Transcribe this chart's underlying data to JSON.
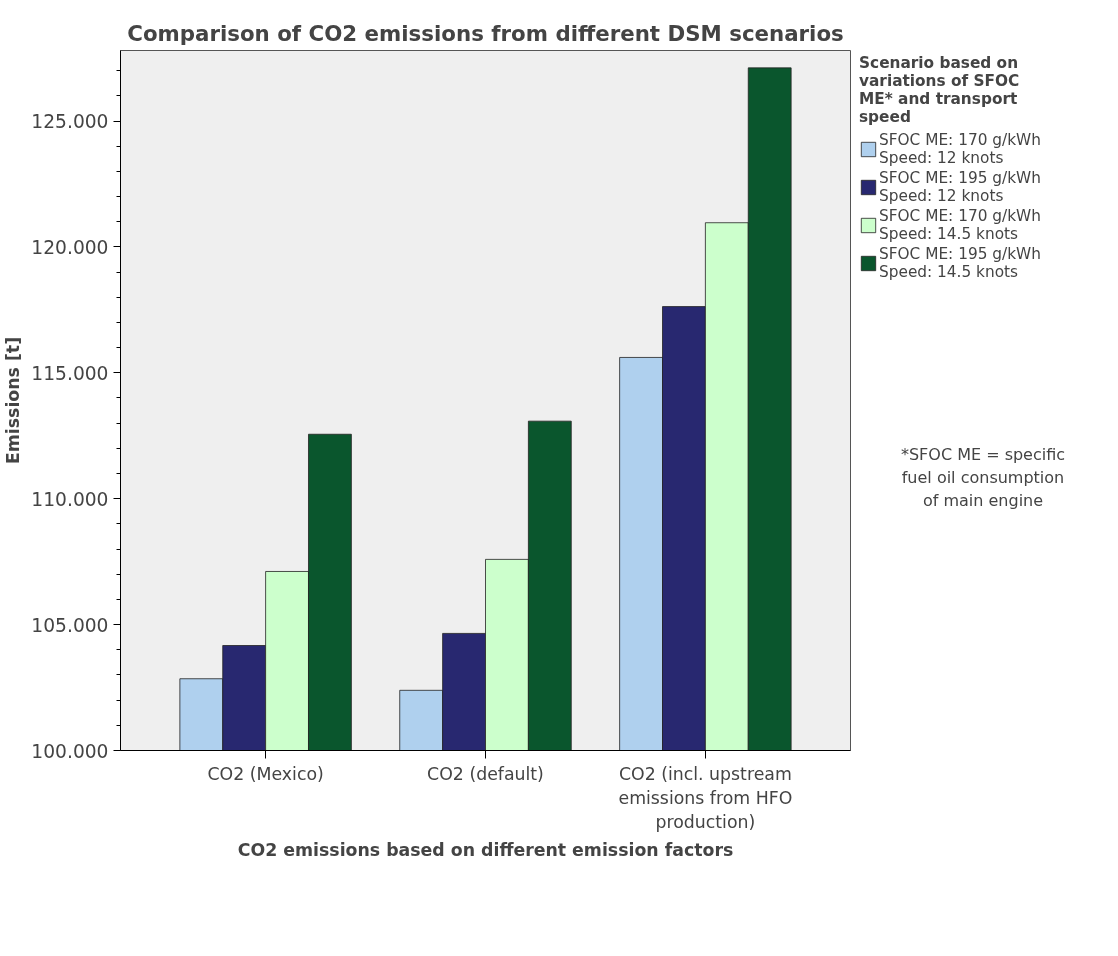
{
  "chart_data": {
    "type": "bar",
    "title": "Comparison of CO2 emissions from different DSM scenarios",
    "xlabel": "CO2 emissions based on different emission factors",
    "ylabel": "Emissions [t]",
    "legend_title": "Scenario based on variations of SFOC ME* and transport speed",
    "categories": [
      "CO2 (Mexico)",
      "CO2 (default)",
      "CO2 (incl. upstream emissions from HFO production)"
    ],
    "series": [
      {
        "name": "SFOC ME: 170 g/kWh Speed: 12 knots",
        "color": "#afd0ee",
        "values": [
          102.85,
          102.39,
          115.61
        ]
      },
      {
        "name": "SFOC ME: 195 g/kWh Speed: 12 knots",
        "color": "#282870",
        "values": [
          104.17,
          104.65,
          117.63
        ]
      },
      {
        "name": "SFOC ME: 170 g/kWh Speed: 14.5 knots",
        "color": "#ccffcc",
        "values": [
          107.11,
          107.59,
          120.96
        ]
      },
      {
        "name": "SFOC ME: 195 g/kWh Speed: 14.5 knots",
        "color": "#0a562d",
        "values": [
          112.56,
          113.08,
          127.11
        ]
      }
    ],
    "ylim": [
      100,
      127.8
    ],
    "yticks": [
      {
        "value": 100,
        "label": "100.000"
      },
      {
        "value": 101,
        "label": null
      },
      {
        "value": 102,
        "label": null
      },
      {
        "value": 103,
        "label": null
      },
      {
        "value": 104,
        "label": null
      },
      {
        "value": 105,
        "label": "105.000"
      },
      {
        "value": 106,
        "label": null
      },
      {
        "value": 107,
        "label": null
      },
      {
        "value": 108,
        "label": null
      },
      {
        "value": 109,
        "label": null
      },
      {
        "value": 110,
        "label": "110.000"
      },
      {
        "value": 111,
        "label": null
      },
      {
        "value": 112,
        "label": null
      },
      {
        "value": 113,
        "label": null
      },
      {
        "value": 114,
        "label": null
      },
      {
        "value": 115,
        "label": "115.000"
      },
      {
        "value": 116,
        "label": null
      },
      {
        "value": 117,
        "label": null
      },
      {
        "value": 118,
        "label": null
      },
      {
        "value": 119,
        "label": null
      },
      {
        "value": 120,
        "label": "120.000"
      },
      {
        "value": 121,
        "label": null
      },
      {
        "value": 122,
        "label": null
      },
      {
        "value": 123,
        "label": null
      },
      {
        "value": 124,
        "label": null
      },
      {
        "value": 125,
        "label": "125.000"
      },
      {
        "value": 126,
        "label": null
      },
      {
        "value": 127,
        "label": null
      }
    ],
    "legend": "right",
    "grid": false,
    "annotations": [
      "*SFOC ME = specific fuel oil consumption of main engine"
    ]
  }
}
